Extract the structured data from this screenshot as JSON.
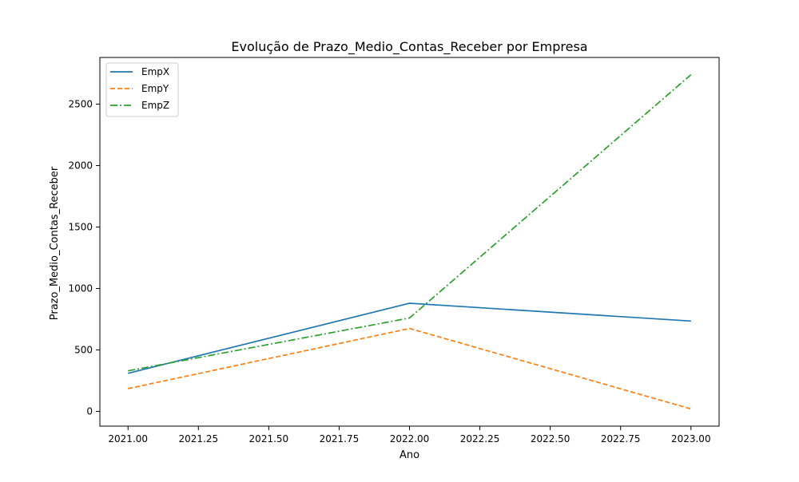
{
  "chart_data": {
    "type": "line",
    "title": "Evolução de Prazo_Medio_Contas_Receber por Empresa",
    "xlabel": "Ano",
    "ylabel": "Prazo_Medio_Contas_Receber",
    "x": [
      2021,
      2022,
      2023
    ],
    "xlim": [
      2020.9,
      2023.1
    ],
    "ylim": [
      -120,
      2880
    ],
    "xticks": [
      {
        "value": 2021.0,
        "label": "2021.00"
      },
      {
        "value": 2021.25,
        "label": "2021.25"
      },
      {
        "value": 2021.5,
        "label": "2021.50"
      },
      {
        "value": 2021.75,
        "label": "2021.75"
      },
      {
        "value": 2022.0,
        "label": "2022.00"
      },
      {
        "value": 2022.25,
        "label": "2022.25"
      },
      {
        "value": 2022.5,
        "label": "2022.50"
      },
      {
        "value": 2022.75,
        "label": "2022.75"
      },
      {
        "value": 2023.0,
        "label": "2023.00"
      }
    ],
    "yticks": [
      {
        "value": 0,
        "label": "0"
      },
      {
        "value": 500,
        "label": "500"
      },
      {
        "value": 1000,
        "label": "1000"
      },
      {
        "value": 1500,
        "label": "1500"
      },
      {
        "value": 2000,
        "label": "2000"
      },
      {
        "value": 2500,
        "label": "2500"
      }
    ],
    "grid": false,
    "legend_position": "top-left",
    "series": [
      {
        "name": "EmpX",
        "values": [
          310,
          880,
          735
        ],
        "color": "#1f77b4",
        "style": "solid"
      },
      {
        "name": "EmpY",
        "values": [
          185,
          675,
          20
        ],
        "color": "#ff7f0e",
        "style": "dashed"
      },
      {
        "name": "EmpZ",
        "values": [
          330,
          760,
          2740
        ],
        "color": "#2ca02c",
        "style": "dashdot"
      }
    ]
  }
}
